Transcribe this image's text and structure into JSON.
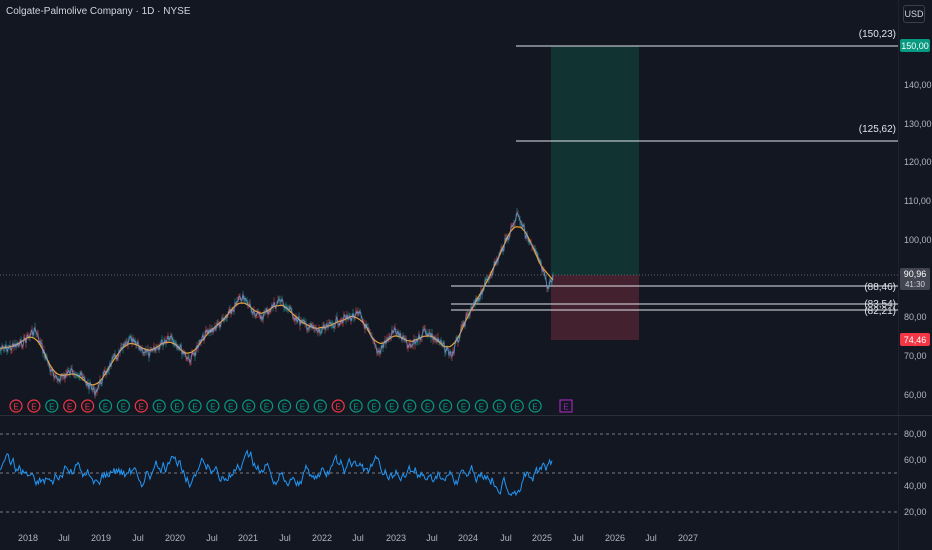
{
  "header": {
    "symbol_title": "Colgate-Palmolive Company · 1D · NYSE",
    "currency": "USD"
  },
  "price_scale": {
    "ticks": [
      "140,00",
      "130,00",
      "120,00",
      "110,00",
      "100,00",
      "80,00",
      "70,00",
      "60,00"
    ],
    "current_price": "90,96",
    "countdown": "41:30",
    "target_badge": "150,00",
    "stop_badge": "74,46"
  },
  "annotations": {
    "target_high": "(150,23)",
    "target_mid": "(125,62)",
    "level_1": "(88,46)",
    "level_2": "(83,54)",
    "level_3": "(82,21)"
  },
  "rsi_scale": {
    "ticks": [
      "80,00",
      "60,00",
      "40,00",
      "20,00"
    ]
  },
  "time_axis": {
    "labels": [
      "2018",
      "Jul",
      "2019",
      "Jul",
      "2020",
      "Jul",
      "2021",
      "Jul",
      "2022",
      "Jul",
      "2023",
      "Jul",
      "2024",
      "Jul",
      "2025",
      "Jul",
      "2026",
      "Jul",
      "2027"
    ]
  },
  "earnings_markers": {
    "label": "E",
    "colors": [
      "red",
      "red",
      "teal",
      "red",
      "red",
      "teal",
      "teal",
      "red",
      "teal",
      "teal",
      "teal",
      "teal",
      "teal",
      "teal",
      "teal",
      "teal",
      "teal",
      "teal",
      "red",
      "teal",
      "teal",
      "teal",
      "teal",
      "teal",
      "teal",
      "teal",
      "teal",
      "teal",
      "teal",
      "teal",
      "purple"
    ]
  },
  "colors": {
    "background": "#131722",
    "price_line": "#6b8fd6",
    "ma_line": "#e8a33d",
    "rsi_line": "#2196f3",
    "profit_zone": "#134a42",
    "loss_zone": "#5a2531",
    "target_badge": "#089981",
    "stop_badge": "#f23645"
  }
}
